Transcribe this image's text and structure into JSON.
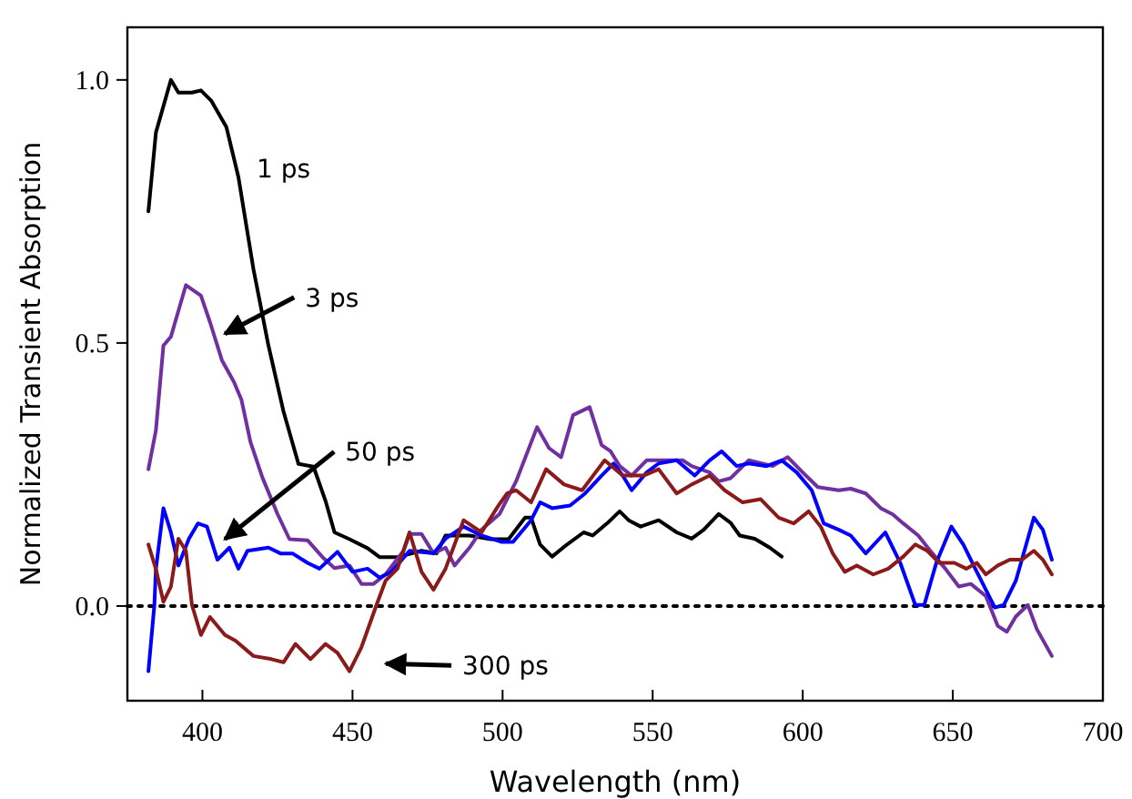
{
  "chart_data": {
    "type": "line",
    "xlabel": "Wavelength (nm)",
    "ylabel": "Normalized Transient Absorption",
    "xlim": [
      375,
      700
    ],
    "xticks": [
      400,
      450,
      500,
      550,
      600,
      650,
      700
    ],
    "ylim": [
      -0.18,
      1.1
    ],
    "yticks": [
      {
        "value": 0,
        "label": "0.0"
      },
      {
        "value": 0.5,
        "label": "0.5"
      },
      {
        "value": 1,
        "label": "1.0"
      }
    ],
    "grid": false,
    "line_style": "solid",
    "marker": "none",
    "ref_lines": [
      {
        "axis": "y",
        "value": 0,
        "line_style": "dotted",
        "color": "#000000"
      }
    ],
    "annotations": [
      "1 ps",
      "3 ps",
      "50 ps",
      "300 ps"
    ],
    "series": [
      {
        "color": "#000000",
        "x": [
          382,
          384.5,
          389.5,
          392,
          396.5,
          399.5,
          403,
          408,
          412,
          417,
          422,
          427,
          432,
          437,
          441,
          444,
          449,
          455,
          459,
          465,
          473,
          478,
          481,
          489,
          496,
          502,
          507.5,
          509.5,
          512.5,
          516.5,
          521.5,
          527,
          530,
          535,
          539,
          542,
          546,
          552,
          558,
          563,
          567,
          572,
          576,
          579,
          584,
          589,
          593
        ],
        "values": [
          0.75,
          0.9,
          1.0,
          0.976,
          0.976,
          0.98,
          0.96,
          0.91,
          0.815,
          0.64,
          0.495,
          0.37,
          0.27,
          0.265,
          0.2,
          0.14,
          0.127,
          0.11,
          0.093,
          0.093,
          0.105,
          0.1,
          0.134,
          0.134,
          0.127,
          0.127,
          0.168,
          0.168,
          0.117,
          0.094,
          0.117,
          0.14,
          0.134,
          0.158,
          0.18,
          0.163,
          0.151,
          0.163,
          0.14,
          0.128,
          0.145,
          0.175,
          0.158,
          0.134,
          0.128,
          0.111,
          0.094
        ]
      },
      {
        "color": "#7030a0",
        "x": [
          382,
          384.5,
          387,
          389.5,
          394.5,
          399.5,
          402.5,
          406.5,
          410.5,
          413,
          416,
          420,
          425,
          429,
          435,
          440,
          444,
          449,
          453,
          457,
          461,
          467,
          469,
          473,
          477,
          481,
          484,
          489,
          493,
          499,
          504.5,
          511.5,
          515.5,
          519.5,
          523.5,
          529,
          533,
          536,
          539,
          543,
          548,
          554,
          560,
          563,
          569,
          572,
          576,
          582,
          590,
          595,
          600,
          605,
          612,
          616,
          621,
          626,
          630,
          633.5,
          638.5,
          642.5,
          647.5,
          652,
          656,
          661,
          665,
          668,
          671,
          675,
          678,
          683
        ],
        "values": [
          0.26,
          0.334,
          0.495,
          0.512,
          0.61,
          0.59,
          0.54,
          0.467,
          0.426,
          0.392,
          0.312,
          0.244,
          0.175,
          0.127,
          0.125,
          0.093,
          0.072,
          0.077,
          0.042,
          0.042,
          0.06,
          0.105,
          0.137,
          0.137,
          0.1,
          0.111,
          0.077,
          0.111,
          0.145,
          0.175,
          0.237,
          0.34,
          0.3,
          0.283,
          0.363,
          0.378,
          0.306,
          0.294,
          0.266,
          0.248,
          0.277,
          0.277,
          0.277,
          0.266,
          0.254,
          0.237,
          0.243,
          0.277,
          0.266,
          0.283,
          0.254,
          0.226,
          0.22,
          0.223,
          0.214,
          0.186,
          0.174,
          0.157,
          0.134,
          0.105,
          0.071,
          0.037,
          0.042,
          0.019,
          -0.038,
          -0.049,
          -0.02,
          0.002,
          -0.044,
          -0.095
        ]
      },
      {
        "color": "#0000ff",
        "x": [
          382,
          384,
          384.5,
          387,
          389.5,
          392,
          395.5,
          398.5,
          401.5,
          405,
          409,
          412,
          415,
          422,
          426,
          430,
          435,
          439,
          445,
          450,
          455,
          459,
          463,
          469,
          477,
          481,
          487,
          493,
          499.5,
          503.5,
          509.5,
          512.5,
          516.5,
          522.5,
          527.5,
          533,
          537,
          540,
          543,
          548,
          552,
          558,
          564,
          569,
          573,
          578,
          582,
          588,
          593,
          598,
          603,
          607,
          612,
          616,
          621,
          627.5,
          632.5,
          637.5,
          640.5,
          644.5,
          649.5,
          653.5,
          658,
          664,
          667,
          671,
          677,
          680,
          683
        ],
        "values": [
          -0.124,
          0.003,
          0.07,
          0.186,
          0.14,
          0.077,
          0.128,
          0.157,
          0.151,
          0.088,
          0.111,
          0.071,
          0.105,
          0.111,
          0.1,
          0.1,
          0.082,
          0.071,
          0.103,
          0.065,
          0.071,
          0.054,
          0.065,
          0.105,
          0.1,
          0.128,
          0.151,
          0.134,
          0.122,
          0.122,
          0.163,
          0.197,
          0.186,
          0.191,
          0.214,
          0.248,
          0.271,
          0.248,
          0.22,
          0.254,
          0.271,
          0.277,
          0.248,
          0.277,
          0.294,
          0.266,
          0.271,
          0.266,
          0.277,
          0.254,
          0.22,
          0.157,
          0.145,
          0.134,
          0.1,
          0.14,
          0.082,
          0.002,
          0.002,
          0.082,
          0.151,
          0.117,
          0.065,
          -0.003,
          0.002,
          0.048,
          0.168,
          0.145,
          0.088
        ]
      },
      {
        "color": "#8b1a1a",
        "x": [
          382,
          384.5,
          387,
          389.5,
          392,
          394.5,
          396.5,
          399.5,
          402.5,
          407.5,
          411,
          417,
          423,
          427,
          431,
          436,
          441,
          445,
          449,
          453,
          458,
          461,
          465,
          469,
          473,
          477,
          481,
          487,
          493,
          498.5,
          501.5,
          504.5,
          509.5,
          514.5,
          520.5,
          526.5,
          534,
          540,
          547,
          552,
          558,
          563,
          569,
          574,
          580,
          586,
          592,
          597,
          602,
          606,
          610,
          614,
          618,
          623.5,
          628.5,
          633.5,
          637.5,
          641.5,
          645.5,
          650.5,
          654.5,
          658,
          661,
          665,
          669,
          673,
          677,
          680,
          683
        ],
        "values": [
          0.117,
          0.07,
          0.008,
          0.037,
          0.128,
          0.105,
          0.002,
          -0.055,
          -0.021,
          -0.055,
          -0.066,
          -0.095,
          -0.101,
          -0.107,
          -0.072,
          -0.101,
          -0.072,
          -0.089,
          -0.124,
          -0.078,
          0.002,
          0.048,
          0.071,
          0.14,
          0.065,
          0.031,
          0.071,
          0.163,
          0.14,
          0.19,
          0.214,
          0.22,
          0.197,
          0.26,
          0.231,
          0.22,
          0.277,
          0.248,
          0.248,
          0.26,
          0.214,
          0.231,
          0.248,
          0.22,
          0.197,
          0.203,
          0.168,
          0.157,
          0.18,
          0.151,
          0.1,
          0.065,
          0.077,
          0.06,
          0.071,
          0.094,
          0.117,
          0.105,
          0.082,
          0.082,
          0.071,
          0.082,
          0.06,
          0.077,
          0.088,
          0.088,
          0.105,
          0.088,
          0.06
        ]
      }
    ]
  }
}
